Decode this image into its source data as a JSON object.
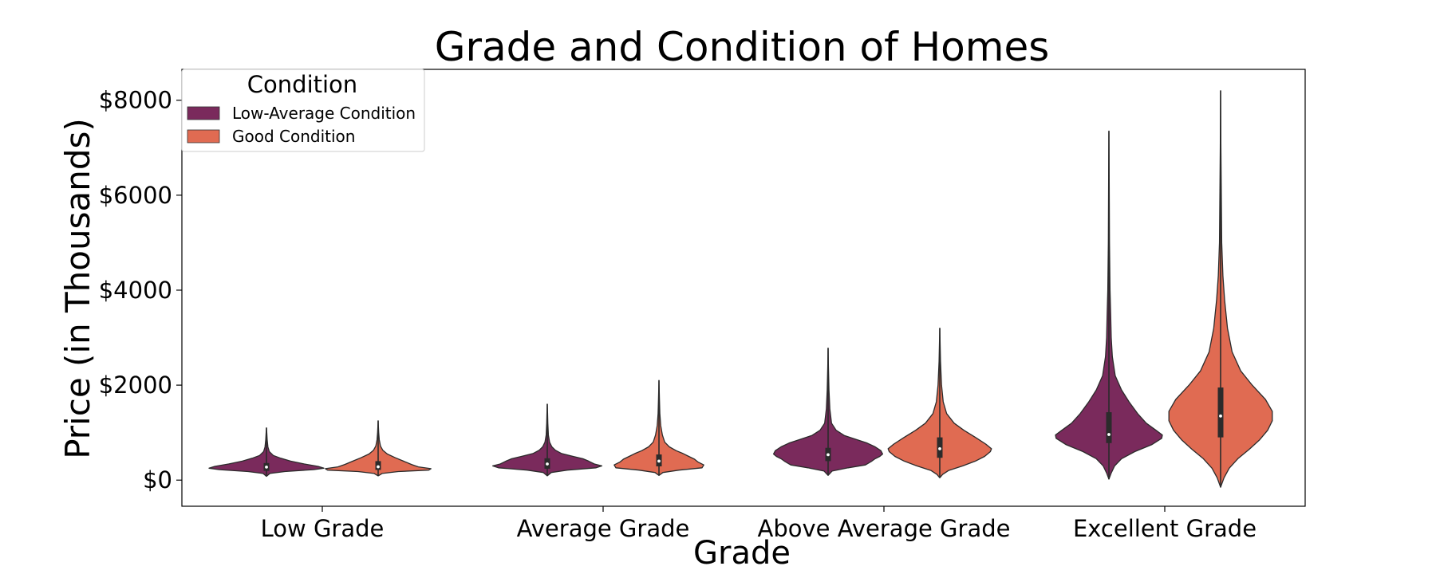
{
  "chart_data": {
    "type": "violin",
    "title": "Grade and Condition of Homes",
    "xlabel": "Grade",
    "ylabel": "Price (in Thousands)",
    "ylim": [
      -550,
      8650
    ],
    "yticks": [
      0,
      2000,
      4000,
      6000,
      8000
    ],
    "ytick_labels": [
      "$0",
      "$2000",
      "$4000",
      "$6000",
      "$8000"
    ],
    "categories": [
      "Low Grade",
      "Average Grade",
      "Above Average Grade",
      "Excellent Grade"
    ],
    "legend": {
      "title": "Condition",
      "position": "upper-left"
    },
    "grid": false,
    "series": [
      {
        "name": "Low-Average Condition",
        "color": "#7a2a5c",
        "violins": [
          {
            "min": 80,
            "max": 1100,
            "q1": 195,
            "median": 275,
            "q3": 360,
            "profile": [
              [
                80,
                0.0
              ],
              [
                140,
                0.06
              ],
              [
                180,
                0.32
              ],
              [
                220,
                0.82
              ],
              [
                250,
                1.0
              ],
              [
                290,
                0.9
              ],
              [
                340,
                0.66
              ],
              [
                400,
                0.42
              ],
              [
                460,
                0.25
              ],
              [
                520,
                0.12
              ],
              [
                600,
                0.05
              ],
              [
                700,
                0.025
              ],
              [
                850,
                0.012
              ],
              [
                1000,
                0.006
              ],
              [
                1100,
                0.0
              ]
            ]
          },
          {
            "min": 90,
            "max": 1600,
            "q1": 240,
            "median": 340,
            "q3": 460,
            "profile": [
              [
                90,
                0.0
              ],
              [
                160,
                0.07
              ],
              [
                210,
                0.35
              ],
              [
                260,
                0.85
              ],
              [
                300,
                0.95
              ],
              [
                340,
                0.82
              ],
              [
                400,
                0.72
              ],
              [
                450,
                0.62
              ],
              [
                500,
                0.45
              ],
              [
                560,
                0.25
              ],
              [
                630,
                0.14
              ],
              [
                700,
                0.08
              ],
              [
                800,
                0.04
              ],
              [
                950,
                0.02
              ],
              [
                1200,
                0.01
              ],
              [
                1400,
                0.005
              ],
              [
                1600,
                0.0
              ]
            ]
          },
          {
            "min": 100,
            "max": 2780,
            "q1": 400,
            "median": 535,
            "q3": 680,
            "profile": [
              [
                100,
                0.0
              ],
              [
                190,
                0.07
              ],
              [
                260,
                0.35
              ],
              [
                320,
                0.65
              ],
              [
                390,
                0.75
              ],
              [
                450,
                0.82
              ],
              [
                500,
                0.9
              ],
              [
                550,
                0.95
              ],
              [
                620,
                0.92
              ],
              [
                700,
                0.82
              ],
              [
                780,
                0.68
              ],
              [
                860,
                0.48
              ],
              [
                940,
                0.28
              ],
              [
                1050,
                0.14
              ],
              [
                1200,
                0.06
              ],
              [
                1500,
                0.03
              ],
              [
                1900,
                0.015
              ],
              [
                2400,
                0.006
              ],
              [
                2780,
                0.0
              ]
            ]
          },
          {
            "min": 20,
            "max": 7350,
            "q1": 780,
            "median": 960,
            "q3": 1430,
            "profile": [
              [
                20,
                0.0
              ],
              [
                150,
                0.04
              ],
              [
                300,
                0.1
              ],
              [
                450,
                0.22
              ],
              [
                600,
                0.45
              ],
              [
                750,
                0.75
              ],
              [
                880,
                0.92
              ],
              [
                950,
                0.93
              ],
              [
                1050,
                0.82
              ],
              [
                1200,
                0.65
              ],
              [
                1400,
                0.5
              ],
              [
                1650,
                0.35
              ],
              [
                1900,
                0.22
              ],
              [
                2200,
                0.11
              ],
              [
                2600,
                0.06
              ],
              [
                3000,
                0.04
              ],
              [
                3500,
                0.03
              ],
              [
                4000,
                0.02
              ],
              [
                5000,
                0.01
              ],
              [
                6500,
                0.004
              ],
              [
                7350,
                0.0
              ]
            ]
          }
        ]
      },
      {
        "name": "Good Condition",
        "color": "#e06b52",
        "violins": [
          {
            "min": 90,
            "max": 1250,
            "q1": 215,
            "median": 280,
            "q3": 400,
            "profile": [
              [
                90,
                0.0
              ],
              [
                140,
                0.07
              ],
              [
                180,
                0.35
              ],
              [
                210,
                0.88
              ],
              [
                240,
                0.92
              ],
              [
                280,
                0.7
              ],
              [
                330,
                0.58
              ],
              [
                400,
                0.44
              ],
              [
                470,
                0.3
              ],
              [
                550,
                0.16
              ],
              [
                630,
                0.08
              ],
              [
                720,
                0.04
              ],
              [
                850,
                0.02
              ],
              [
                1000,
                0.01
              ],
              [
                1250,
                0.0
              ]
            ]
          },
          {
            "min": 100,
            "max": 2100,
            "q1": 290,
            "median": 400,
            "q3": 540,
            "profile": [
              [
                100,
                0.0
              ],
              [
                160,
                0.07
              ],
              [
                210,
                0.35
              ],
              [
                260,
                0.75
              ],
              [
                320,
                0.78
              ],
              [
                380,
                0.68
              ],
              [
                440,
                0.62
              ],
              [
                500,
                0.52
              ],
              [
                560,
                0.42
              ],
              [
                620,
                0.3
              ],
              [
                700,
                0.18
              ],
              [
                800,
                0.1
              ],
              [
                950,
                0.06
              ],
              [
                1150,
                0.03
              ],
              [
                1400,
                0.015
              ],
              [
                1700,
                0.008
              ],
              [
                2100,
                0.0
              ]
            ]
          },
          {
            "min": 50,
            "max": 3200,
            "q1": 470,
            "median": 660,
            "q3": 900,
            "profile": [
              [
                50,
                0.0
              ],
              [
                120,
                0.05
              ],
              [
                200,
                0.15
              ],
              [
                300,
                0.4
              ],
              [
                400,
                0.62
              ],
              [
                500,
                0.78
              ],
              [
                600,
                0.88
              ],
              [
                660,
                0.9
              ],
              [
                760,
                0.8
              ],
              [
                900,
                0.62
              ],
              [
                1050,
                0.42
              ],
              [
                1200,
                0.25
              ],
              [
                1400,
                0.12
              ],
              [
                1650,
                0.06
              ],
              [
                2000,
                0.03
              ],
              [
                2500,
                0.012
              ],
              [
                3200,
                0.0
              ]
            ]
          },
          {
            "min": -150,
            "max": 8200,
            "q1": 900,
            "median": 1350,
            "q3": 1950,
            "profile": [
              [
                -150,
                0.0
              ],
              [
                50,
                0.06
              ],
              [
                250,
                0.15
              ],
              [
                450,
                0.3
              ],
              [
                650,
                0.5
              ],
              [
                850,
                0.68
              ],
              [
                1050,
                0.82
              ],
              [
                1250,
                0.9
              ],
              [
                1450,
                0.9
              ],
              [
                1700,
                0.78
              ],
              [
                2000,
                0.55
              ],
              [
                2300,
                0.35
              ],
              [
                2700,
                0.2
              ],
              [
                3200,
                0.12
              ],
              [
                3800,
                0.07
              ],
              [
                4300,
                0.04
              ],
              [
                5000,
                0.02
              ],
              [
                6000,
                0.012
              ],
              [
                7000,
                0.006
              ],
              [
                8200,
                0.0
              ]
            ]
          }
        ]
      }
    ]
  }
}
